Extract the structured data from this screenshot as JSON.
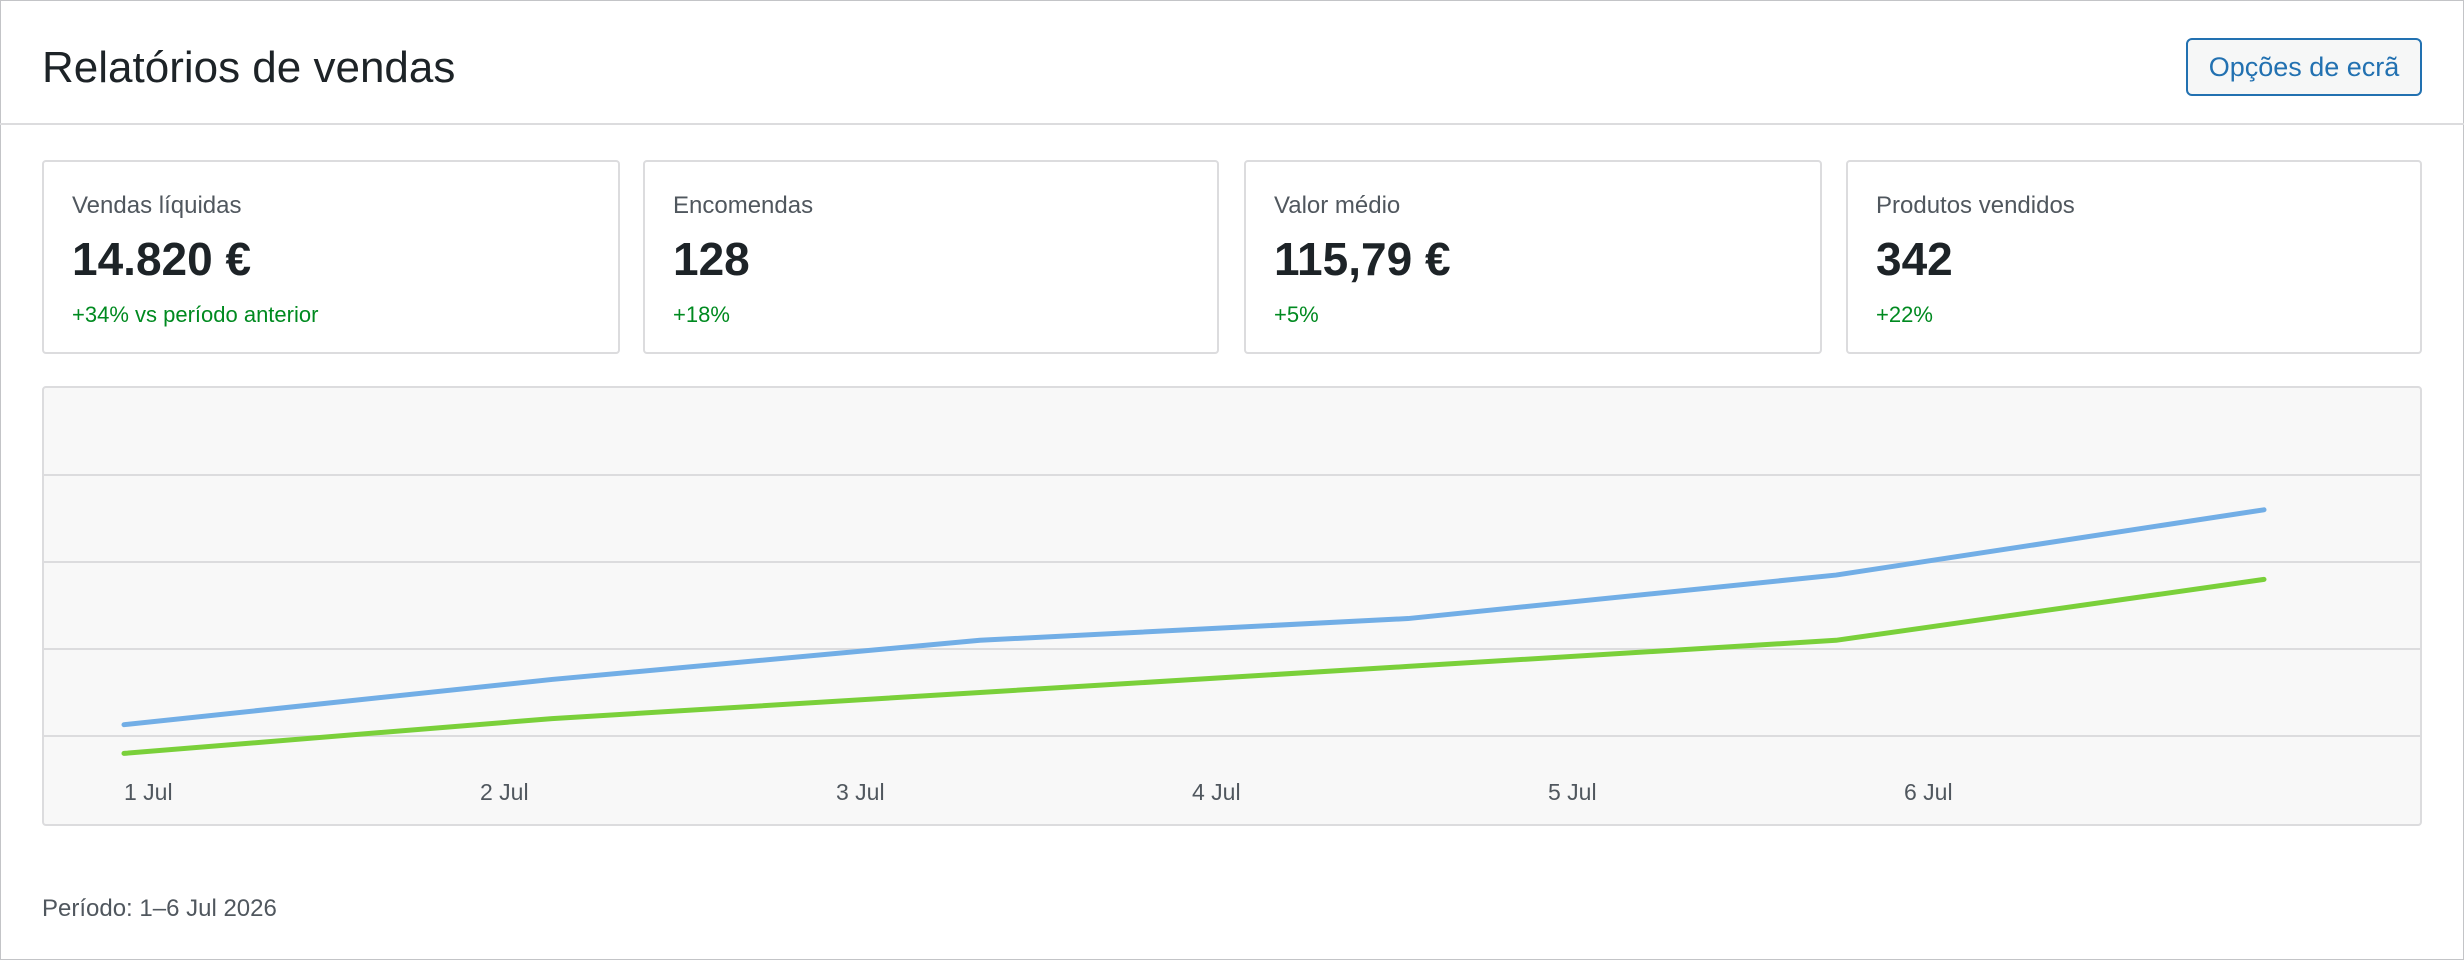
{
  "header": {
    "title": "Relatórios de vendas",
    "screen_options_label": "Opções de ecrã"
  },
  "stats": [
    {
      "label": "Vendas líquidas",
      "value": "14.820 €",
      "delta": "+34% vs período anterior"
    },
    {
      "label": "Encomendas",
      "value": "128",
      "delta": "+18%"
    },
    {
      "label": "Valor médio",
      "value": "115,79 €",
      "delta": "+5%"
    },
    {
      "label": "Produtos vendidos",
      "value": "342",
      "delta": "+22%"
    }
  ],
  "chart_data": {
    "type": "line",
    "x": [
      "1 Jul",
      "2 Jul",
      "3 Jul",
      "4 Jul",
      "5 Jul",
      "6 Jul"
    ],
    "grid": true,
    "legend": "none",
    "ylim": [
      0,
      4
    ],
    "series": [
      {
        "color": "#72aee6",
        "values": [
          0.13,
          0.65,
          1.1,
          1.35,
          1.85,
          2.6
        ]
      },
      {
        "color": "#7ad03a",
        "values": [
          -0.2,
          0.2,
          0.5,
          0.8,
          1.1,
          1.8
        ]
      }
    ]
  },
  "footer": {
    "period": "Período: 1–6 Jul 2026"
  }
}
